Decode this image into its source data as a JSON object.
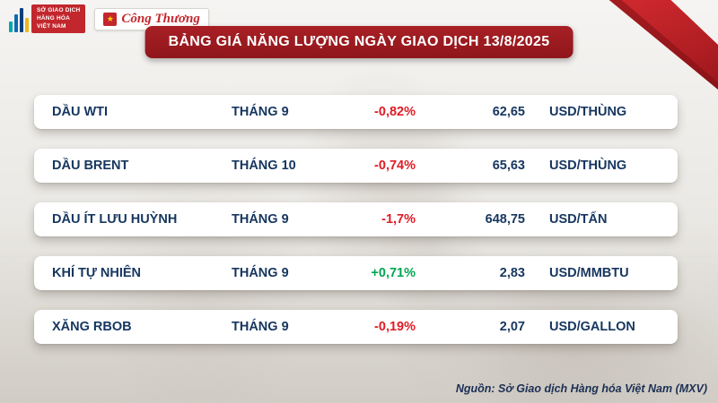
{
  "header": {
    "mxv_logo": [
      "SỞ GIAO DỊCH",
      "HÀNG HÓA",
      "VIỆT NAM"
    ],
    "congthuong_logo": "Công Thương",
    "title": "BẢNG GIÁ NĂNG LƯỢNG NGÀY GIAO DỊCH 13/8/2025"
  },
  "table": {
    "rows": [
      {
        "name": "DẦU WTI",
        "month": "THÁNG 9",
        "change": "-0,82%",
        "direction": "down",
        "price": "62,65",
        "unit": "USD/THÙNG"
      },
      {
        "name": "DẦU BRENT",
        "month": "THÁNG 10",
        "change": "-0,74%",
        "direction": "down",
        "price": "65,63",
        "unit": "USD/THÙNG"
      },
      {
        "name": "DẦU ÍT LƯU HUỲNH",
        "month": "THÁNG 9",
        "change": "-1,7%",
        "direction": "down",
        "price": "648,75",
        "unit": "USD/TẤN"
      },
      {
        "name": "KHÍ TỰ NHIÊN",
        "month": "THÁNG 9",
        "change": "+0,71%",
        "direction": "up",
        "price": "2,83",
        "unit": "USD/MMBTU"
      },
      {
        "name": "XĂNG RBOB",
        "month": "THÁNG 9",
        "change": "-0,19%",
        "direction": "down",
        "price": "2,07",
        "unit": "USD/GALLON"
      }
    ]
  },
  "footer": {
    "source": "Nguồn: Sở Giao dịch Hàng hóa Việt Nam (MXV)"
  },
  "colors": {
    "accent_red": "#9a161b",
    "brand_red": "#c1272d",
    "negative": "#e01b24",
    "positive": "#00a651",
    "text_navy": "#16365f"
  },
  "chart_data": {
    "type": "table",
    "title": "BẢNG GIÁ NĂNG LƯỢNG NGÀY GIAO DỊCH 13/8/2025",
    "rows": [
      [
        "DẦU WTI",
        "THÁNG 9",
        "-0,82%",
        "62,65",
        "USD/THÙNG"
      ],
      [
        "DẦU BRENT",
        "THÁNG 10",
        "-0,74%",
        "65,63",
        "USD/THÙNG"
      ],
      [
        "DẦU ÍT LƯU HUỲNH",
        "THÁNG 9",
        "-1,7%",
        "648,75",
        "USD/TẤN"
      ],
      [
        "KHÍ TỰ NHIÊN",
        "THÁNG 9",
        "+0,71%",
        "2,83",
        "USD/MMBTU"
      ],
      [
        "XĂNG RBOB",
        "THÁNG 9",
        "-0,19%",
        "2,07",
        "USD/GALLON"
      ]
    ],
    "source": "Nguồn: Sở Giao dịch Hàng hóa Việt Nam (MXV)"
  }
}
